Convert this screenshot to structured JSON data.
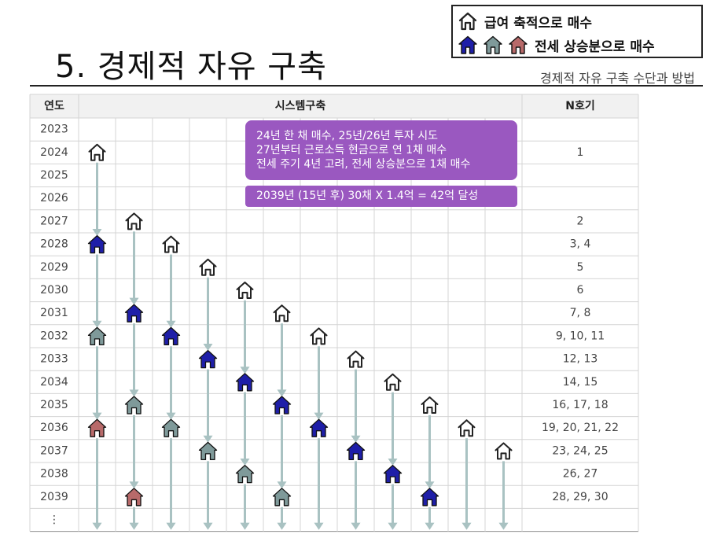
{
  "page": {
    "title": "5. 경제적 자유 구축",
    "subtitle": "경제적 자유 구축 수단과 방법"
  },
  "legend": {
    "salary_label": "급여 축적으로 매수",
    "jeonse_label": "전세 상승분으로 매수"
  },
  "colors": {
    "house_outline": "#222222",
    "house_blue": "#1e1ea8",
    "house_gray": "#7f9a9a",
    "house_pink": "#b86a6a",
    "arrow": "#a9c2c2",
    "grid": "#d4d4d4",
    "header_bg": "#f1f1f1",
    "callout": "#9a58c0"
  },
  "table": {
    "headers": {
      "year": "연도",
      "system": "시스템구축",
      "nth": "N호기"
    },
    "years": [
      "2023",
      "2024",
      "2025",
      "2026",
      "2027",
      "2028",
      "2029",
      "2030",
      "2031",
      "2032",
      "2033",
      "2034",
      "2035",
      "2036",
      "2037",
      "2038",
      "2039",
      "⋮"
    ],
    "nth": [
      "",
      "1",
      "",
      "",
      "2",
      "3, 4",
      "5",
      "6",
      "7, 8",
      "9, 10, 11",
      "12, 13",
      "14, 15",
      "16, 17, 18",
      "19, 20, 21, 22",
      "23, 24, 25",
      "26, 27",
      "28, 29, 30",
      ""
    ]
  },
  "houses": [
    {
      "col": 0,
      "row": 1,
      "type": "outline"
    },
    {
      "col": 1,
      "row": 4,
      "type": "outline"
    },
    {
      "col": 0,
      "row": 5,
      "type": "blue"
    },
    {
      "col": 2,
      "row": 5,
      "type": "outline"
    },
    {
      "col": 3,
      "row": 6,
      "type": "outline"
    },
    {
      "col": 4,
      "row": 7,
      "type": "outline"
    },
    {
      "col": 1,
      "row": 8,
      "type": "blue"
    },
    {
      "col": 5,
      "row": 8,
      "type": "outline"
    },
    {
      "col": 0,
      "row": 9,
      "type": "gray"
    },
    {
      "col": 2,
      "row": 9,
      "type": "blue"
    },
    {
      "col": 6,
      "row": 9,
      "type": "outline"
    },
    {
      "col": 3,
      "row": 10,
      "type": "blue"
    },
    {
      "col": 7,
      "row": 10,
      "type": "outline"
    },
    {
      "col": 4,
      "row": 11,
      "type": "blue"
    },
    {
      "col": 8,
      "row": 11,
      "type": "outline"
    },
    {
      "col": 1,
      "row": 12,
      "type": "gray"
    },
    {
      "col": 5,
      "row": 12,
      "type": "blue"
    },
    {
      "col": 9,
      "row": 12,
      "type": "outline"
    },
    {
      "col": 0,
      "row": 13,
      "type": "pink"
    },
    {
      "col": 2,
      "row": 13,
      "type": "gray"
    },
    {
      "col": 6,
      "row": 13,
      "type": "blue"
    },
    {
      "col": 10,
      "row": 13,
      "type": "outline"
    },
    {
      "col": 3,
      "row": 14,
      "type": "gray"
    },
    {
      "col": 7,
      "row": 14,
      "type": "blue"
    },
    {
      "col": 11,
      "row": 14,
      "type": "outline"
    },
    {
      "col": 4,
      "row": 15,
      "type": "gray"
    },
    {
      "col": 8,
      "row": 15,
      "type": "blue"
    },
    {
      "col": 1,
      "row": 16,
      "type": "pink"
    },
    {
      "col": 5,
      "row": 16,
      "type": "gray"
    },
    {
      "col": 9,
      "row": 16,
      "type": "blue"
    }
  ],
  "callouts": {
    "main": [
      "24년 한 채 매수, 25년/26년 투자 시도",
      "27년부터 근로소득 현금으로 연 1채 매수",
      "전세 주기 4년 고려, 전세 상승분으로 1채 매수"
    ],
    "goal": "2039년 (15년 후) 30채 X 1.4억 = 42억 달성"
  }
}
